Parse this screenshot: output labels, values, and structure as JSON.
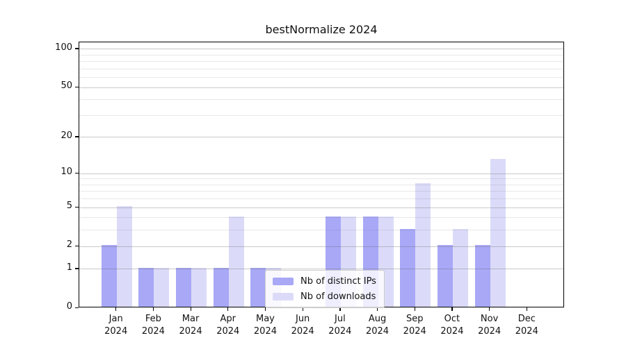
{
  "title": "bestNormalize 2024",
  "year": "2024",
  "colors": {
    "ips_bar": "#a8a8f7",
    "downloads_bar": "#dbdbf9",
    "spine": "#000000",
    "grid_major": "#c9c9c9",
    "grid_minor": "#e8e8e8",
    "legend_border": "#cccccc"
  },
  "legend": {
    "items": [
      {
        "label": "Nb of distinct IPs",
        "color_key": "ips_bar"
      },
      {
        "label": "Nb of downloads",
        "color_key": "downloads_bar"
      }
    ]
  },
  "chart_data": {
    "type": "bar",
    "title": "bestNormalize 2024",
    "categories": [
      "Jan 2024",
      "Feb 2024",
      "Mar 2024",
      "Apr 2024",
      "May 2024",
      "Jun 2024",
      "Jul 2024",
      "Aug 2024",
      "Sep 2024",
      "Oct 2024",
      "Nov 2024",
      "Dec 2024"
    ],
    "month_labels": [
      "Jan",
      "Feb",
      "Mar",
      "Apr",
      "May",
      "Jun",
      "Jul",
      "Aug",
      "Sep",
      "Oct",
      "Nov",
      "Dec"
    ],
    "series": [
      {
        "name": "Nb of distinct IPs",
        "values": [
          2,
          1,
          1,
          1,
          1,
          0,
          4,
          4,
          3,
          2,
          2,
          0
        ]
      },
      {
        "name": "Nb of downloads",
        "values": [
          5,
          1,
          1,
          4,
          1,
          0,
          4,
          4,
          8,
          3,
          13,
          0
        ]
      }
    ],
    "xlabel": "",
    "ylabel": "",
    "scale": "log1p",
    "ylim": [
      0,
      113.3
    ],
    "y_ticks_major": [
      0,
      1,
      2,
      5,
      10,
      20,
      50,
      100
    ],
    "y_tick_labels": [
      "0",
      "1",
      "2",
      "5",
      "10",
      "20",
      "50",
      "100"
    ],
    "y_ticks_minor": [
      3,
      4,
      6,
      7,
      8,
      9,
      30,
      40,
      60,
      70,
      80,
      90
    ],
    "grid": true,
    "legend_position": "lower center"
  }
}
